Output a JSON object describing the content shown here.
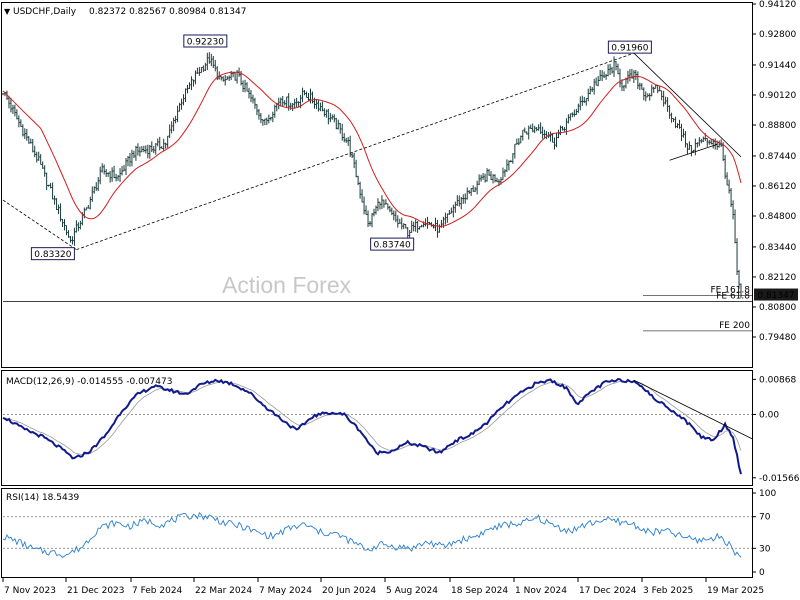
{
  "header": {
    "symbol": "USDCHF,Daily",
    "ohlc": "0.82372 0.82567 0.80984 0.81347",
    "arrow": "▼"
  },
  "watermark": "Action Forex",
  "colors": {
    "candles": "#1a3a3a",
    "ma": "#d21e1e",
    "macd": "#101a8c",
    "signal": "#9a9a9a",
    "rsi": "#2a7fd0",
    "current_price_bg": "#1a1a1a"
  },
  "chart_data": [
    {
      "type": "candlestick",
      "panel": "price",
      "title": "USDCHF,Daily",
      "y_ticks": [
        "0.94120",
        "0.92800",
        "0.91440",
        "0.90120",
        "0.88800",
        "0.87440",
        "0.86120",
        "0.84800",
        "0.83440",
        "0.82120",
        "0.80800",
        "0.79480"
      ],
      "ylim": [
        0.7948,
        0.9412
      ],
      "x_ticks": [
        "7 Nov 2023",
        "21 Dec 2023",
        "7 Feb 2024",
        "22 Mar 2024",
        "7 May 2024",
        "20 Jun 2024",
        "5 Aug 2024",
        "18 Sep 2024",
        "1 Nov 2024",
        "17 Dec 2024",
        "3 Feb 2025",
        "19 Mar 2025"
      ],
      "close_anchors": [
        [
          0,
          0.903
        ],
        [
          8,
          0.889
        ],
        [
          18,
          0.872
        ],
        [
          28,
          0.85
        ],
        [
          34,
          0.837
        ],
        [
          42,
          0.851
        ],
        [
          50,
          0.868
        ],
        [
          58,
          0.865
        ],
        [
          66,
          0.876
        ],
        [
          76,
          0.878
        ],
        [
          82,
          0.88
        ],
        [
          90,
          0.899
        ],
        [
          98,
          0.911
        ],
        [
          104,
          0.917
        ],
        [
          110,
          0.907
        ],
        [
          118,
          0.91
        ],
        [
          124,
          0.901
        ],
        [
          132,
          0.889
        ],
        [
          140,
          0.9
        ],
        [
          146,
          0.897
        ],
        [
          152,
          0.902
        ],
        [
          160,
          0.896
        ],
        [
          168,
          0.888
        ],
        [
          174,
          0.88
        ],
        [
          178,
          0.866
        ],
        [
          184,
          0.844
        ],
        [
          190,
          0.855
        ],
        [
          198,
          0.846
        ],
        [
          204,
          0.841
        ],
        [
          212,
          0.846
        ],
        [
          220,
          0.842
        ],
        [
          228,
          0.853
        ],
        [
          236,
          0.859
        ],
        [
          244,
          0.866
        ],
        [
          250,
          0.864
        ],
        [
          256,
          0.874
        ],
        [
          262,
          0.885
        ],
        [
          270,
          0.887
        ],
        [
          278,
          0.881
        ],
        [
          284,
          0.889
        ],
        [
          292,
          0.898
        ],
        [
          298,
          0.906
        ],
        [
          304,
          0.91
        ],
        [
          308,
          0.914
        ],
        [
          312,
          0.906
        ],
        [
          318,
          0.91
        ],
        [
          324,
          0.901
        ],
        [
          330,
          0.904
        ],
        [
          336,
          0.894
        ],
        [
          342,
          0.884
        ],
        [
          346,
          0.877
        ],
        [
          352,
          0.881
        ],
        [
          358,
          0.881
        ],
        [
          362,
          0.878
        ],
        [
          365,
          0.862
        ],
        [
          368,
          0.848
        ],
        [
          370,
          0.822
        ],
        [
          372,
          0.813
        ]
      ],
      "labels": [
        {
          "text": "0.92230",
          "bar": 104,
          "price": 0.9223,
          "pos": "above"
        },
        {
          "text": "0.83320",
          "bar": 37,
          "price": 0.8332,
          "pos": "left"
        },
        {
          "text": "0.83740",
          "bar": 208,
          "price": 0.8374,
          "pos": "left"
        },
        {
          "text": "0.91960",
          "bar": 318,
          "price": 0.9196,
          "pos": "above"
        }
      ],
      "fib_levels": [
        {
          "text": "FE 161.8",
          "price": 0.813
        },
        {
          "text": "FE 61.8",
          "price": 0.8104
        },
        {
          "text": "FE 200",
          "price": 0.7975
        }
      ],
      "trendlines": [
        {
          "from": [
            0,
            0.855
          ],
          "to": [
            37,
            0.8332
          ]
        },
        {
          "from": [
            37,
            0.8332
          ],
          "to": [
            318,
            0.9196
          ]
        },
        {
          "from": [
            318,
            0.9196
          ],
          "to": [
            372,
            0.874
          ]
        },
        {
          "from": [
            336,
            0.8725
          ],
          "to": [
            360,
            0.8795
          ]
        }
      ],
      "current_price": "0.81347"
    },
    {
      "type": "line",
      "panel": "macd",
      "title": "MACD(12,26,9) -0.014555 -0.007473",
      "y_ticks": [
        "0.00868",
        "0.00",
        "-0.015661"
      ],
      "ylim": [
        -0.0172,
        0.0105
      ],
      "macd_anchors": [
        [
          0,
          -0.0005
        ],
        [
          10,
          -0.0035
        ],
        [
          20,
          -0.0055
        ],
        [
          28,
          -0.008
        ],
        [
          36,
          -0.011
        ],
        [
          44,
          -0.009
        ],
        [
          52,
          -0.005
        ],
        [
          60,
          0.001
        ],
        [
          68,
          0.005
        ],
        [
          76,
          0.007
        ],
        [
          84,
          0.006
        ],
        [
          92,
          0.005
        ],
        [
          100,
          0.0075
        ],
        [
          108,
          0.0085
        ],
        [
          116,
          0.0075
        ],
        [
          124,
          0.0055
        ],
        [
          132,
          0.002
        ],
        [
          140,
          -0.001
        ],
        [
          148,
          -0.004
        ],
        [
          156,
          -0.0005
        ],
        [
          164,
          0.0005
        ],
        [
          172,
          0.0
        ],
        [
          180,
          -0.004
        ],
        [
          188,
          -0.0095
        ],
        [
          196,
          -0.009
        ],
        [
          204,
          -0.007
        ],
        [
          212,
          -0.008
        ],
        [
          220,
          -0.0095
        ],
        [
          228,
          -0.0065
        ],
        [
          236,
          -0.005
        ],
        [
          244,
          -0.002
        ],
        [
          252,
          0.002
        ],
        [
          260,
          0.005
        ],
        [
          268,
          0.0075
        ],
        [
          276,
          0.0085
        ],
        [
          284,
          0.0065
        ],
        [
          290,
          0.0025
        ],
        [
          296,
          0.0055
        ],
        [
          304,
          0.008
        ],
        [
          312,
          0.0085
        ],
        [
          320,
          0.008
        ],
        [
          328,
          0.004
        ],
        [
          336,
          0.0015
        ],
        [
          344,
          -0.0015
        ],
        [
          352,
          -0.0055
        ],
        [
          358,
          -0.0063
        ],
        [
          364,
          -0.0025
        ],
        [
          368,
          -0.0055
        ],
        [
          372,
          -0.015
        ]
      ],
      "trendline": {
        "from": [
          318,
          0.0085
        ],
        "to": [
          372,
          -0.006
        ]
      }
    },
    {
      "type": "line",
      "panel": "rsi",
      "title": "RSI(14) 18.5439",
      "y_ticks": [
        "100",
        "70",
        "30",
        "0"
      ],
      "ylim": [
        0,
        100
      ],
      "levels": [
        70,
        30
      ],
      "rsi_anchors": [
        [
          0,
          45
        ],
        [
          8,
          38
        ],
        [
          16,
          28
        ],
        [
          24,
          25
        ],
        [
          32,
          22
        ],
        [
          40,
          32
        ],
        [
          48,
          55
        ],
        [
          56,
          62
        ],
        [
          64,
          58
        ],
        [
          72,
          65
        ],
        [
          80,
          60
        ],
        [
          88,
          68
        ],
        [
          96,
          72
        ],
        [
          104,
          70
        ],
        [
          112,
          62
        ],
        [
          120,
          58
        ],
        [
          128,
          50
        ],
        [
          136,
          45
        ],
        [
          144,
          55
        ],
        [
          152,
          60
        ],
        [
          160,
          50
        ],
        [
          168,
          48
        ],
        [
          176,
          38
        ],
        [
          184,
          28
        ],
        [
          190,
          35
        ],
        [
          198,
          32
        ],
        [
          206,
          30
        ],
        [
          214,
          38
        ],
        [
          222,
          32
        ],
        [
          230,
          40
        ],
        [
          238,
          45
        ],
        [
          246,
          55
        ],
        [
          254,
          60
        ],
        [
          262,
          62
        ],
        [
          270,
          68
        ],
        [
          278,
          58
        ],
        [
          286,
          52
        ],
        [
          294,
          60
        ],
        [
          302,
          66
        ],
        [
          310,
          64
        ],
        [
          318,
          60
        ],
        [
          326,
          50
        ],
        [
          334,
          52
        ],
        [
          342,
          45
        ],
        [
          350,
          40
        ],
        [
          356,
          42
        ],
        [
          362,
          45
        ],
        [
          366,
          35
        ],
        [
          369,
          25
        ],
        [
          372,
          18.5
        ]
      ]
    }
  ]
}
